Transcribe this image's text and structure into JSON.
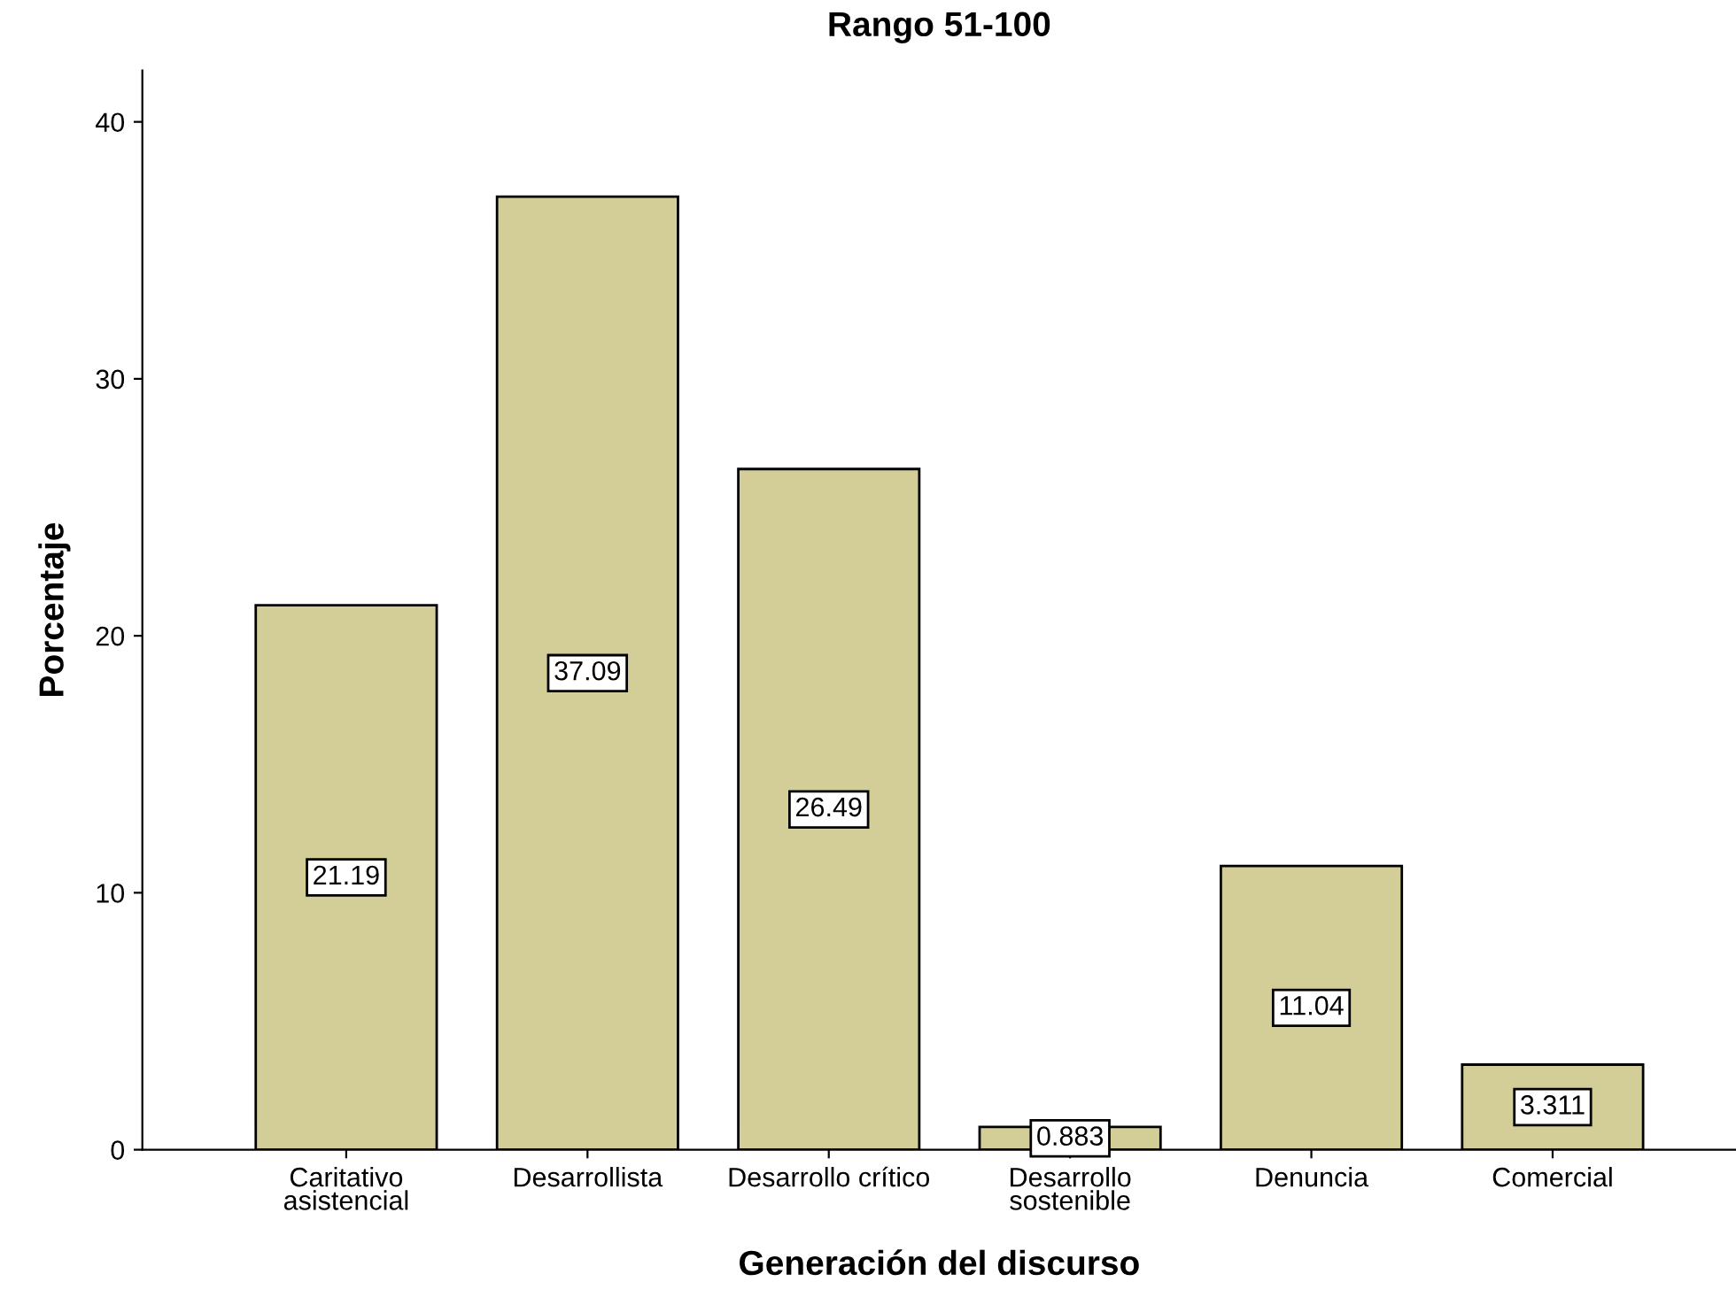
{
  "chart_data": {
    "type": "bar",
    "title": "Rango 51-100",
    "xlabel": "Generación del discurso",
    "ylabel": "Porcentaje",
    "categories": [
      "Caritativo\nasistencial",
      "Desarrollista",
      "Desarrollo crítico",
      "Desarrollo\nsostenible",
      "Denuncia",
      "Comercial"
    ],
    "values": [
      21.19,
      37.09,
      26.49,
      0.883,
      11.04,
      3.311
    ],
    "color": "#d3ce97",
    "ylim": [
      0,
      42
    ],
    "yticks": [
      0,
      10,
      20,
      30,
      40
    ],
    "grid": false,
    "data_labels": true
  }
}
